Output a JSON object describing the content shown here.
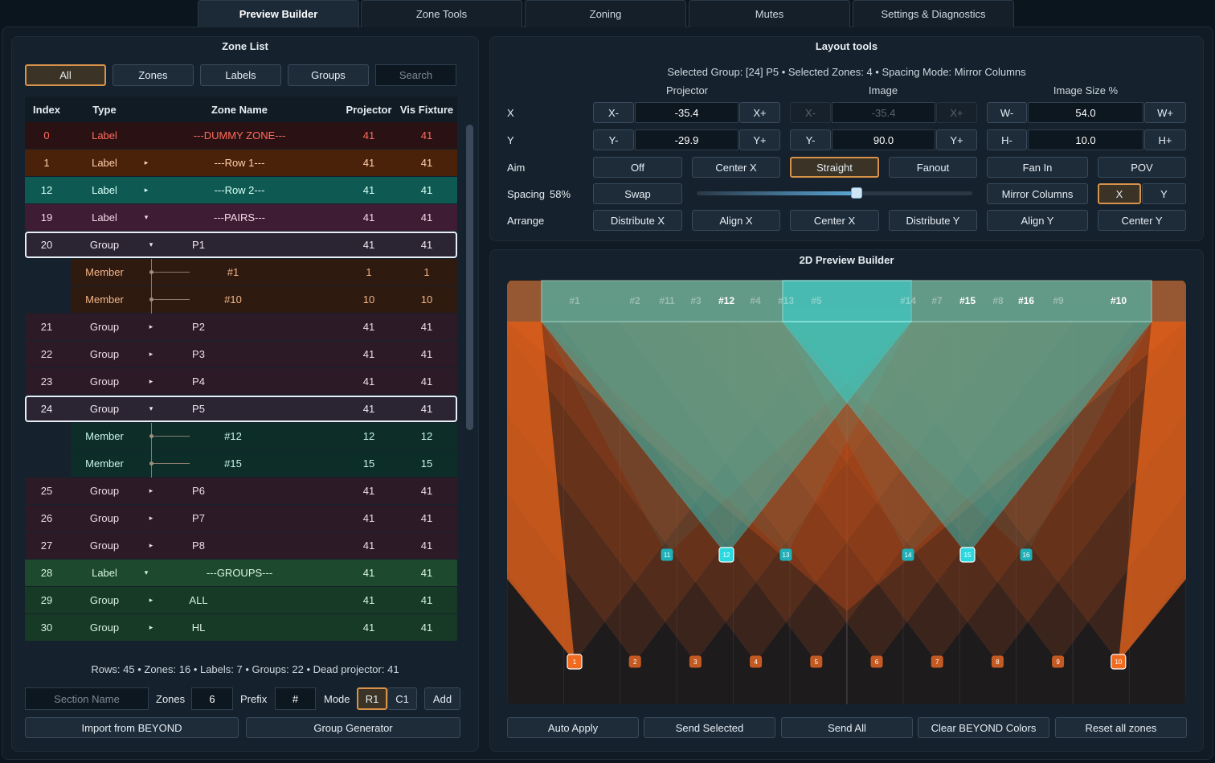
{
  "tabs": [
    {
      "label": "Preview Builder",
      "active": true
    },
    {
      "label": "Zone Tools"
    },
    {
      "label": "Zoning"
    },
    {
      "label": "Mutes"
    },
    {
      "label": "Settings & Diagnostics"
    }
  ],
  "zone_list": {
    "title": "Zone List",
    "filters": [
      {
        "label": "All",
        "active": true
      },
      {
        "label": "Zones"
      },
      {
        "label": "Labels"
      },
      {
        "label": "Groups"
      }
    ],
    "search_placeholder": "Search",
    "columns": [
      "Index",
      "Type",
      "Zone Name",
      "Projector",
      "Vis Fixture"
    ],
    "rows": [
      {
        "index": 0,
        "type": "Label",
        "name": "---DUMMY ZONE---",
        "projector": 41,
        "vis": 41,
        "color": "#2a1214",
        "text_color": "#ff6b5b",
        "align": "center"
      },
      {
        "index": 1,
        "type": "Label",
        "arrow": "▸",
        "name": "---Row 1---",
        "projector": 41,
        "vis": 41,
        "color": "#4a2209",
        "text_color": "#ffd0ac",
        "align": "center"
      },
      {
        "index": 12,
        "type": "Label",
        "arrow": "▸",
        "name": "---Row 2---",
        "projector": 41,
        "vis": 41,
        "color": "#0e5a52",
        "text_color": "#d8fff6",
        "align": "center"
      },
      {
        "index": 19,
        "type": "Label",
        "arrow": "▾",
        "name": "---PAIRS---",
        "projector": 41,
        "vis": 41,
        "color": "#3e1c34",
        "text_color": "#f4d8e8",
        "align": "center"
      },
      {
        "index": 20,
        "type": "Group",
        "arrow": "▾",
        "name": "P1",
        "projector": 41,
        "vis": 41,
        "color": "#2b2433",
        "text_color": "#f0e8f0",
        "align": "left",
        "selected": true
      },
      {
        "index": null,
        "type": "Member",
        "name": "#1",
        "projector": 1,
        "vis": 1,
        "color": "#2f1a10",
        "text_color": "#f4b688",
        "align": "left"
      },
      {
        "index": null,
        "type": "Member",
        "name": "#10",
        "projector": 10,
        "vis": 10,
        "color": "#2f1a10",
        "text_color": "#f4b688",
        "align": "left"
      },
      {
        "index": 21,
        "type": "Group",
        "arrow": "▸",
        "name": "P2",
        "projector": 41,
        "vis": 41,
        "color": "#2c1a27",
        "text_color": "#f0dce8",
        "align": "left"
      },
      {
        "index": 22,
        "type": "Group",
        "arrow": "▸",
        "name": "P3",
        "projector": 41,
        "vis": 41,
        "color": "#2c1a27",
        "text_color": "#f0dce8",
        "align": "left"
      },
      {
        "index": 23,
        "type": "Group",
        "arrow": "▸",
        "name": "P4",
        "projector": 41,
        "vis": 41,
        "color": "#2c1a27",
        "text_color": "#f0dce8",
        "align": "left"
      },
      {
        "index": 24,
        "type": "Group",
        "arrow": "▾",
        "name": "P5",
        "projector": 41,
        "vis": 41,
        "color": "#2b2433",
        "text_color": "#f0e8f0",
        "align": "left",
        "selected": true
      },
      {
        "index": null,
        "type": "Member",
        "name": "#12",
        "projector": 12,
        "vis": 12,
        "color": "#0d2e28",
        "text_color": "#c8f5ea",
        "align": "left"
      },
      {
        "index": null,
        "type": "Member",
        "name": "#15",
        "projector": 15,
        "vis": 15,
        "color": "#0d2e28",
        "text_color": "#c8f5ea",
        "align": "left"
      },
      {
        "index": 25,
        "type": "Group",
        "arrow": "▸",
        "name": "P6",
        "projector": 41,
        "vis": 41,
        "color": "#2c1a27",
        "text_color": "#f0dce8",
        "align": "left"
      },
      {
        "index": 26,
        "type": "Group",
        "arrow": "▸",
        "name": "P7",
        "projector": 41,
        "vis": 41,
        "color": "#2c1a27",
        "text_color": "#f0dce8",
        "align": "left"
      },
      {
        "index": 27,
        "type": "Group",
        "arrow": "▸",
        "name": "P8",
        "projector": 41,
        "vis": 41,
        "color": "#2c1a27",
        "text_color": "#f0dce8",
        "align": "left"
      },
      {
        "index": 28,
        "type": "Label",
        "arrow": "▾",
        "name": "---GROUPS---",
        "projector": 41,
        "vis": 41,
        "color": "#1d4a2e",
        "text_color": "#d8f5e0",
        "align": "center"
      },
      {
        "index": 29,
        "type": "Group",
        "arrow": "▸",
        "name": "ALL",
        "projector": 41,
        "vis": 41,
        "color": "#163a26",
        "text_color": "#d8f0e0",
        "align": "left"
      },
      {
        "index": 30,
        "type": "Group",
        "arrow": "▸",
        "name": "HL",
        "projector": 41,
        "vis": 41,
        "color": "#163a26",
        "text_color": "#d8f0e0",
        "align": "left"
      }
    ],
    "stats": "Rows: 45 • Zones: 16 • Labels: 7 • Groups: 22 • Dead projector: 41",
    "section_placeholder": "Section Name",
    "zones_label": "Zones",
    "zones_value": 6,
    "prefix_label": "Prefix",
    "prefix_value": "#",
    "mode_label": "Mode",
    "modes": [
      {
        "label": "R1",
        "active": true
      },
      {
        "label": "C1"
      }
    ],
    "add": "Add",
    "buttons": [
      "Import from BEYOND",
      "Group Generator"
    ]
  },
  "layout_tools": {
    "title": "Layout tools",
    "status": "Selected Group: [24] P5 • Selected Zones: 4 • Spacing Mode: Mirror Columns",
    "column_heads": [
      "Projector",
      "Image",
      "Image Size %"
    ],
    "steppers": [
      {
        "label": "X",
        "groups": [
          {
            "minus": "X-",
            "value": "-35.4",
            "plus": "X+"
          },
          {
            "minus": "X-",
            "value": "-35.4",
            "plus": "X+",
            "disabled": true
          },
          {
            "minus": "W-",
            "value": "54.0",
            "plus": "W+"
          }
        ]
      },
      {
        "label": "Y",
        "groups": [
          {
            "minus": "Y-",
            "value": "-29.9",
            "plus": "Y+"
          },
          {
            "minus": "Y-",
            "value": "90.0",
            "plus": "Y+"
          },
          {
            "minus": "H-",
            "value": "10.0",
            "plus": "H+"
          }
        ]
      }
    ],
    "aim": {
      "label": "Aim",
      "options": [
        {
          "label": "Off"
        },
        {
          "label": "Center X"
        },
        {
          "label": "Straight",
          "active": true
        },
        {
          "label": "Fanout"
        },
        {
          "label": "Fan In"
        },
        {
          "label": "POV"
        }
      ]
    },
    "spacing": {
      "label": "Spacing",
      "value": 58,
      "value_label": "58%",
      "swap": "Swap",
      "mode": "Mirror Columns",
      "axes": [
        {
          "label": "X",
          "active": true
        },
        {
          "label": "Y"
        }
      ]
    },
    "arrange": {
      "label": "Arrange",
      "options": [
        {
          "label": "Distribute X"
        },
        {
          "label": "Align X"
        },
        {
          "label": "Center X"
        },
        {
          "label": "Distribute Y"
        },
        {
          "label": "Align Y"
        },
        {
          "label": "Center Y"
        }
      ]
    }
  },
  "preview": {
    "title": "2D Preview Builder",
    "top_labels": [
      "#1",
      "#2",
      "#11",
      "#3",
      "#12",
      "#4",
      "#13",
      "#5",
      "#14",
      "#7",
      "#15",
      "#8",
      "#16",
      "#9",
      "#10"
    ],
    "bottom_nodes": [
      1,
      2,
      3,
      4,
      5,
      6,
      7,
      8,
      9,
      10
    ],
    "top_nodes": [
      11,
      12,
      13,
      14,
      15,
      16
    ],
    "buttons": [
      "Auto Apply",
      "Send Selected",
      "Send All",
      "Clear BEYOND Colors",
      "Reset all zones"
    ]
  }
}
